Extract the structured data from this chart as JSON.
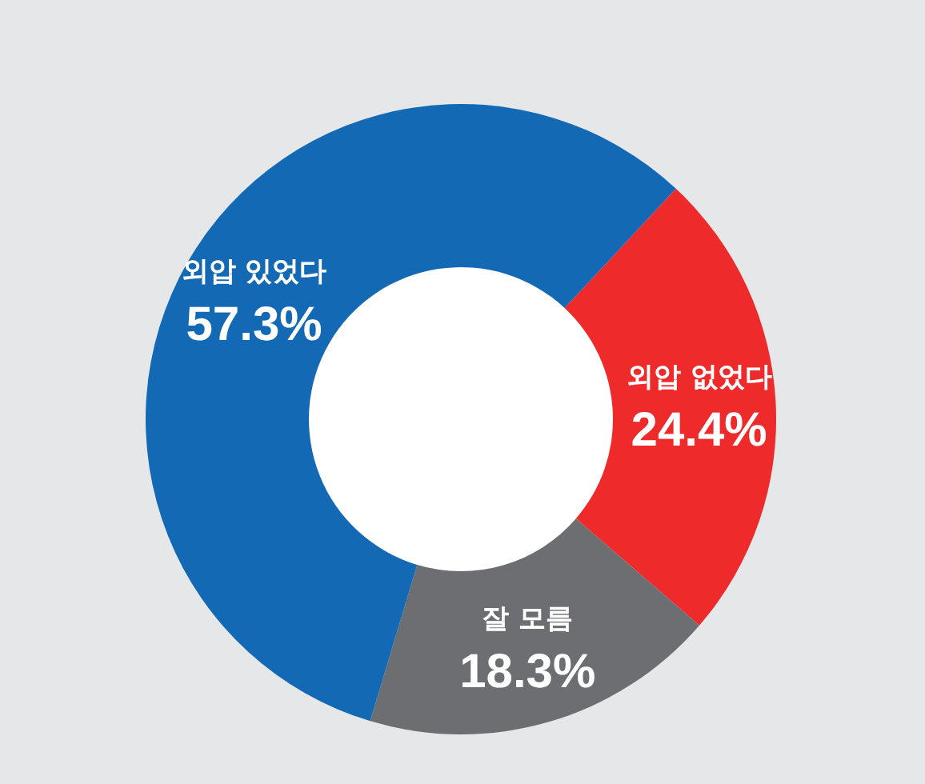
{
  "chart_data": {
    "type": "donut",
    "categories": [
      "외압 없었다",
      "잘 모름",
      "외압 있었다"
    ],
    "values": [
      24.4,
      18.3,
      57.3
    ],
    "colors": [
      "#ee2a2a",
      "#6d6e71",
      "#1369b3"
    ],
    "value_labels": [
      "24.4%",
      "18.3%",
      "57.3%"
    ]
  }
}
